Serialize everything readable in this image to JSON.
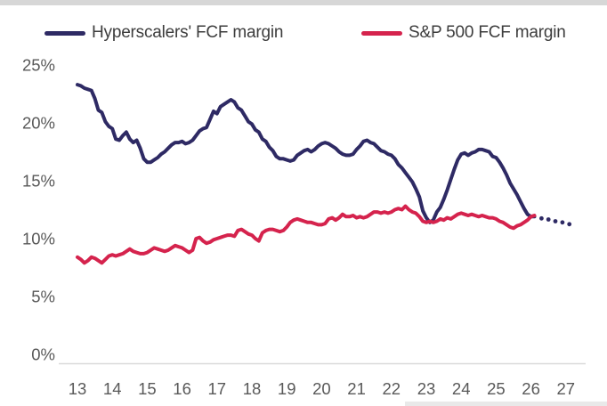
{
  "decor": {
    "top_bar_color": "#d7d7d7",
    "bottom_bar_color": "#e9e9e9"
  },
  "chart_data": {
    "type": "line",
    "title": "",
    "xlabel": "",
    "ylabel": "",
    "grid": false,
    "legend_position": "top",
    "xlim": [
      13,
      27.5
    ],
    "ylim": [
      0,
      25
    ],
    "x_ticks": [
      13,
      14,
      15,
      16,
      17,
      18,
      19,
      20,
      21,
      22,
      23,
      24,
      25,
      26,
      27
    ],
    "y_ticks": [
      25,
      20,
      15,
      10,
      5,
      0
    ],
    "y_tick_suffix": "%",
    "axis_line_color": "#d9d9d9",
    "tick_label_color": "#595959",
    "series": [
      {
        "id": "hyperscalers",
        "name": "Hyperscalers' FCF margin",
        "color": "#2e2a64",
        "style": "solid",
        "points": [
          [
            13.0,
            23.3
          ],
          [
            13.1,
            23.2
          ],
          [
            13.2,
            23.0
          ],
          [
            13.3,
            22.9
          ],
          [
            13.4,
            22.8
          ],
          [
            13.5,
            22.1
          ],
          [
            13.6,
            21.1
          ],
          [
            13.7,
            20.9
          ],
          [
            13.8,
            20.1
          ],
          [
            13.9,
            19.7
          ],
          [
            14.0,
            19.5
          ],
          [
            14.1,
            18.6
          ],
          [
            14.2,
            18.5
          ],
          [
            14.3,
            18.9
          ],
          [
            14.4,
            19.2
          ],
          [
            14.5,
            18.6
          ],
          [
            14.6,
            18.3
          ],
          [
            14.7,
            18.5
          ],
          [
            14.8,
            17.8
          ],
          [
            14.9,
            16.9
          ],
          [
            15.0,
            16.6
          ],
          [
            15.1,
            16.6
          ],
          [
            15.2,
            16.8
          ],
          [
            15.3,
            17.0
          ],
          [
            15.4,
            17.3
          ],
          [
            15.5,
            17.5
          ],
          [
            15.6,
            17.8
          ],
          [
            15.7,
            18.1
          ],
          [
            15.8,
            18.3
          ],
          [
            15.9,
            18.3
          ],
          [
            16.0,
            18.4
          ],
          [
            16.1,
            18.2
          ],
          [
            16.2,
            18.3
          ],
          [
            16.3,
            18.5
          ],
          [
            16.4,
            18.9
          ],
          [
            16.5,
            19.3
          ],
          [
            16.6,
            19.5
          ],
          [
            16.7,
            19.6
          ],
          [
            16.8,
            20.3
          ],
          [
            16.9,
            21.0
          ],
          [
            17.0,
            20.8
          ],
          [
            17.1,
            21.4
          ],
          [
            17.2,
            21.6
          ],
          [
            17.3,
            21.8
          ],
          [
            17.4,
            22.0
          ],
          [
            17.5,
            21.8
          ],
          [
            17.6,
            21.3
          ],
          [
            17.7,
            21.1
          ],
          [
            17.8,
            20.6
          ],
          [
            17.9,
            20.1
          ],
          [
            18.0,
            19.9
          ],
          [
            18.1,
            19.4
          ],
          [
            18.2,
            19.2
          ],
          [
            18.3,
            18.6
          ],
          [
            18.4,
            18.4
          ],
          [
            18.5,
            17.9
          ],
          [
            18.6,
            17.6
          ],
          [
            18.7,
            17.1
          ],
          [
            18.8,
            16.9
          ],
          [
            18.9,
            16.9
          ],
          [
            19.0,
            16.8
          ],
          [
            19.1,
            16.7
          ],
          [
            19.2,
            16.8
          ],
          [
            19.3,
            17.2
          ],
          [
            19.4,
            17.4
          ],
          [
            19.5,
            17.6
          ],
          [
            19.6,
            17.7
          ],
          [
            19.7,
            17.5
          ],
          [
            19.8,
            17.7
          ],
          [
            19.9,
            18.0
          ],
          [
            20.0,
            18.2
          ],
          [
            20.1,
            18.3
          ],
          [
            20.2,
            18.2
          ],
          [
            20.3,
            18.0
          ],
          [
            20.4,
            17.8
          ],
          [
            20.5,
            17.5
          ],
          [
            20.6,
            17.3
          ],
          [
            20.7,
            17.2
          ],
          [
            20.8,
            17.2
          ],
          [
            20.9,
            17.3
          ],
          [
            21.0,
            17.7
          ],
          [
            21.1,
            18.0
          ],
          [
            21.2,
            18.4
          ],
          [
            21.3,
            18.5
          ],
          [
            21.4,
            18.3
          ],
          [
            21.5,
            18.2
          ],
          [
            21.6,
            17.9
          ],
          [
            21.7,
            17.6
          ],
          [
            21.8,
            17.5
          ],
          [
            21.9,
            17.3
          ],
          [
            22.0,
            17.2
          ],
          [
            22.1,
            16.9
          ],
          [
            22.2,
            16.4
          ],
          [
            22.3,
            16.1
          ],
          [
            22.4,
            15.7
          ],
          [
            22.5,
            15.3
          ],
          [
            22.6,
            14.9
          ],
          [
            22.7,
            14.3
          ],
          [
            22.8,
            13.6
          ],
          [
            22.9,
            12.4
          ],
          [
            23.0,
            11.8
          ],
          [
            23.1,
            11.4
          ],
          [
            23.2,
            11.6
          ],
          [
            23.3,
            12.3
          ],
          [
            23.4,
            12.7
          ],
          [
            23.5,
            13.4
          ],
          [
            23.6,
            14.2
          ],
          [
            23.7,
            15.1
          ],
          [
            23.8,
            16.0
          ],
          [
            23.9,
            16.8
          ],
          [
            24.0,
            17.3
          ],
          [
            24.1,
            17.4
          ],
          [
            24.2,
            17.2
          ],
          [
            24.3,
            17.4
          ],
          [
            24.4,
            17.5
          ],
          [
            24.5,
            17.7
          ],
          [
            24.6,
            17.7
          ],
          [
            24.7,
            17.6
          ],
          [
            24.8,
            17.5
          ],
          [
            24.9,
            17.1
          ],
          [
            25.0,
            17.0
          ],
          [
            25.1,
            16.6
          ],
          [
            25.2,
            16.1
          ],
          [
            25.3,
            15.5
          ],
          [
            25.4,
            14.8
          ],
          [
            25.5,
            14.3
          ],
          [
            25.6,
            13.8
          ],
          [
            25.7,
            13.2
          ],
          [
            25.8,
            12.6
          ],
          [
            25.9,
            12.1
          ],
          [
            26.0,
            11.9
          ],
          [
            26.1,
            11.9
          ]
        ]
      },
      {
        "id": "sp500",
        "name": "S&P 500 FCF margin",
        "color": "#d5234d",
        "style": "solid",
        "points": [
          [
            13.0,
            8.4
          ],
          [
            13.1,
            8.2
          ],
          [
            13.2,
            7.9
          ],
          [
            13.3,
            8.1
          ],
          [
            13.4,
            8.4
          ],
          [
            13.5,
            8.3
          ],
          [
            13.6,
            8.1
          ],
          [
            13.7,
            7.9
          ],
          [
            13.8,
            8.2
          ],
          [
            13.9,
            8.5
          ],
          [
            14.0,
            8.6
          ],
          [
            14.1,
            8.5
          ],
          [
            14.2,
            8.6
          ],
          [
            14.3,
            8.7
          ],
          [
            14.4,
            8.9
          ],
          [
            14.5,
            9.1
          ],
          [
            14.6,
            8.9
          ],
          [
            14.7,
            8.8
          ],
          [
            14.8,
            8.7
          ],
          [
            14.9,
            8.7
          ],
          [
            15.0,
            8.8
          ],
          [
            15.1,
            9.0
          ],
          [
            15.2,
            9.2
          ],
          [
            15.3,
            9.1
          ],
          [
            15.4,
            9.0
          ],
          [
            15.5,
            8.9
          ],
          [
            15.6,
            9.0
          ],
          [
            15.7,
            9.2
          ],
          [
            15.8,
            9.4
          ],
          [
            15.9,
            9.3
          ],
          [
            16.0,
            9.2
          ],
          [
            16.1,
            9.0
          ],
          [
            16.2,
            8.8
          ],
          [
            16.3,
            9.0
          ],
          [
            16.4,
            10.0
          ],
          [
            16.5,
            10.1
          ],
          [
            16.6,
            9.8
          ],
          [
            16.7,
            9.6
          ],
          [
            16.8,
            9.7
          ],
          [
            16.9,
            9.9
          ],
          [
            17.0,
            10.0
          ],
          [
            17.1,
            10.1
          ],
          [
            17.2,
            10.2
          ],
          [
            17.3,
            10.3
          ],
          [
            17.4,
            10.3
          ],
          [
            17.5,
            10.2
          ],
          [
            17.6,
            10.7
          ],
          [
            17.7,
            10.8
          ],
          [
            17.8,
            10.6
          ],
          [
            17.9,
            10.4
          ],
          [
            18.0,
            10.3
          ],
          [
            18.1,
            10.0
          ],
          [
            18.2,
            9.8
          ],
          [
            18.3,
            10.5
          ],
          [
            18.4,
            10.7
          ],
          [
            18.5,
            10.8
          ],
          [
            18.6,
            10.8
          ],
          [
            18.7,
            10.7
          ],
          [
            18.8,
            10.6
          ],
          [
            18.9,
            10.7
          ],
          [
            19.0,
            11.0
          ],
          [
            19.1,
            11.4
          ],
          [
            19.2,
            11.6
          ],
          [
            19.3,
            11.7
          ],
          [
            19.4,
            11.6
          ],
          [
            19.5,
            11.5
          ],
          [
            19.6,
            11.4
          ],
          [
            19.7,
            11.4
          ],
          [
            19.8,
            11.3
          ],
          [
            19.9,
            11.2
          ],
          [
            20.0,
            11.2
          ],
          [
            20.1,
            11.3
          ],
          [
            20.2,
            11.7
          ],
          [
            20.3,
            11.8
          ],
          [
            20.4,
            11.6
          ],
          [
            20.5,
            11.8
          ],
          [
            20.6,
            12.1
          ],
          [
            20.7,
            11.9
          ],
          [
            20.8,
            11.9
          ],
          [
            20.9,
            12.0
          ],
          [
            21.0,
            11.8
          ],
          [
            21.1,
            11.9
          ],
          [
            21.2,
            11.8
          ],
          [
            21.3,
            11.9
          ],
          [
            21.4,
            12.1
          ],
          [
            21.5,
            12.3
          ],
          [
            21.6,
            12.3
          ],
          [
            21.7,
            12.2
          ],
          [
            21.8,
            12.3
          ],
          [
            21.9,
            12.2
          ],
          [
            22.0,
            12.3
          ],
          [
            22.1,
            12.5
          ],
          [
            22.2,
            12.6
          ],
          [
            22.3,
            12.5
          ],
          [
            22.4,
            12.8
          ],
          [
            22.5,
            12.5
          ],
          [
            22.6,
            12.3
          ],
          [
            22.7,
            12.2
          ],
          [
            22.8,
            11.9
          ],
          [
            22.9,
            11.5
          ],
          [
            23.0,
            11.4
          ],
          [
            23.1,
            11.5
          ],
          [
            23.2,
            11.4
          ],
          [
            23.3,
            11.5
          ],
          [
            23.4,
            11.7
          ],
          [
            23.5,
            11.6
          ],
          [
            23.6,
            11.8
          ],
          [
            23.7,
            11.7
          ],
          [
            23.8,
            11.9
          ],
          [
            23.9,
            12.1
          ],
          [
            24.0,
            12.2
          ],
          [
            24.1,
            12.1
          ],
          [
            24.2,
            12.0
          ],
          [
            24.3,
            12.1
          ],
          [
            24.4,
            12.0
          ],
          [
            24.5,
            11.9
          ],
          [
            24.6,
            12.0
          ],
          [
            24.7,
            11.9
          ],
          [
            24.8,
            11.8
          ],
          [
            24.9,
            11.8
          ],
          [
            25.0,
            11.7
          ],
          [
            25.1,
            11.5
          ],
          [
            25.2,
            11.4
          ],
          [
            25.3,
            11.2
          ],
          [
            25.4,
            11.0
          ],
          [
            25.5,
            10.9
          ],
          [
            25.6,
            11.1
          ],
          [
            25.7,
            11.2
          ],
          [
            25.8,
            11.4
          ],
          [
            25.9,
            11.6
          ],
          [
            26.0,
            11.9
          ],
          [
            26.1,
            12.0
          ]
        ]
      },
      {
        "id": "hyperscalers_forecast",
        "name": "hyperscalers-forecast-dotted",
        "color": "#2e2a64",
        "style": "dotted",
        "points": [
          [
            26.3,
            11.75
          ],
          [
            26.5,
            11.65
          ],
          [
            26.7,
            11.5
          ],
          [
            26.9,
            11.4
          ],
          [
            27.1,
            11.25
          ]
        ]
      }
    ]
  }
}
